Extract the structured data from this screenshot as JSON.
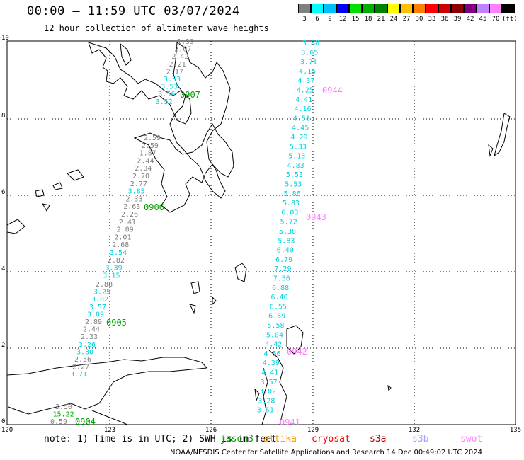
{
  "title": "00:00 – 11:59 UTC 03/07/2024",
  "subtitle": "12 hour collection of altimeter wave heights",
  "colorbar": {
    "labels": [
      "3",
      "6",
      "9",
      "12",
      "15",
      "18",
      "21",
      "24",
      "27",
      "30",
      "33",
      "36",
      "39",
      "42",
      "45",
      "70",
      "(ft)"
    ],
    "colors": [
      "#808080",
      "#00ffff",
      "#00c0ff",
      "#0000ff",
      "#00e000",
      "#00b000",
      "#008000",
      "#ffff00",
      "#ffc000",
      "#ff8000",
      "#ff0000",
      "#d00000",
      "#900000",
      "#800080",
      "#c080ff",
      "#ff80ff",
      "#000000"
    ]
  },
  "axes": {
    "lon_ticks": [
      "120",
      "123",
      "126",
      "129",
      "132",
      "135"
    ],
    "lat_ticks": [
      "0",
      "2",
      "4",
      "6",
      "8",
      "10"
    ]
  },
  "tracks": [
    {
      "id": "0907",
      "color": "#00a000",
      "values": [
        "1.99",
        "2.07",
        "2.42",
        "2.21",
        "2.17",
        "3.53",
        "3.53",
        "3.56",
        "3.52"
      ],
      "colors": [
        "#808080",
        "#808080",
        "#808080",
        "#808080",
        "#808080",
        "#00d0e0",
        "#00d0e0",
        "#00d0e0",
        "#00d0e0"
      ]
    },
    {
      "id": "0906",
      "color": "#00a000",
      "values": [
        "2.59",
        "2.59",
        "1.87",
        "2.44",
        "2.04",
        "2.70",
        "2.77",
        "3.85",
        "2.33",
        "2.63",
        "2.26",
        "2.41",
        "2.89",
        "2.01",
        "2.68",
        "3.54",
        "2.82",
        "3.39",
        "3.15"
      ],
      "colors": [
        "#808080",
        "#808080",
        "#808080",
        "#808080",
        "#808080",
        "#808080",
        "#808080",
        "#00d0e0",
        "#808080",
        "#808080",
        "#808080",
        "#808080",
        "#808080",
        "#808080",
        "#808080",
        "#00d0e0",
        "#808080",
        "#00d0e0",
        "#00d0e0"
      ]
    },
    {
      "id": "0905",
      "color": "#00a000",
      "values": [
        "2.88",
        "3.25",
        "3.82",
        "3.57",
        "3.09",
        "2.89",
        "2.44",
        "2.33",
        "3.26",
        "3.30",
        "2.56",
        "2.27",
        "3.71"
      ],
      "colors": [
        "#808080",
        "#00d0e0",
        "#00d0e0",
        "#00d0e0",
        "#00d0e0",
        "#808080",
        "#808080",
        "#808080",
        "#00d0e0",
        "#00d0e0",
        "#808080",
        "#808080",
        "#00d0e0"
      ]
    },
    {
      "id": "0904",
      "color": "#00a000",
      "values": [
        "3.50",
        "15.22",
        "0.59"
      ],
      "colors": [
        "#808080",
        "#00b000",
        "#808080"
      ]
    },
    {
      "id": "0944",
      "color": "#ff80ff",
      "values": [
        "3.88",
        "3.65",
        "3.71",
        "4.15",
        "4.37",
        "4.25",
        "4.41",
        "4.16",
        "4.58",
        "4.45",
        "4.29",
        "5.33",
        "5.13",
        "4.83",
        "5.53",
        "5.53",
        "5.86",
        "5.83",
        "6.03",
        "5.72",
        "5.38",
        "5.83",
        "6.40",
        "6.79",
        "7.29",
        "7.56",
        "6.88",
        "6.40",
        "6.55",
        "6.39",
        "5.58",
        "5.04",
        "4.42",
        "4.56",
        "4.39",
        "4.41",
        "3.57",
        "3.02",
        "3.28",
        "3.51"
      ]
    },
    {
      "id": "0943",
      "color": "#ff80ff",
      "values": []
    },
    {
      "id": "0942",
      "color": "#ff80ff",
      "values": []
    },
    {
      "id": "0941",
      "color": "#ff80ff",
      "values": []
    }
  ],
  "note": "note:  1) Time is in UTC; 2) SWH is in feet",
  "satellites": [
    {
      "name": "jason3",
      "color": "#00a000"
    },
    {
      "name": "altika",
      "color": "#ff9900"
    },
    {
      "name": "cryosat",
      "color": "#ff0000"
    },
    {
      "name": "s3a",
      "color": "#b00000"
    },
    {
      "name": "s3b",
      "color": "#a0a0ff"
    },
    {
      "name": "swot",
      "color": "#ff80ff"
    }
  ],
  "footer": "NOAA/NESDIS Center for Satellite Applications and Research    14 Dec 00:49:02 UTC 2024"
}
